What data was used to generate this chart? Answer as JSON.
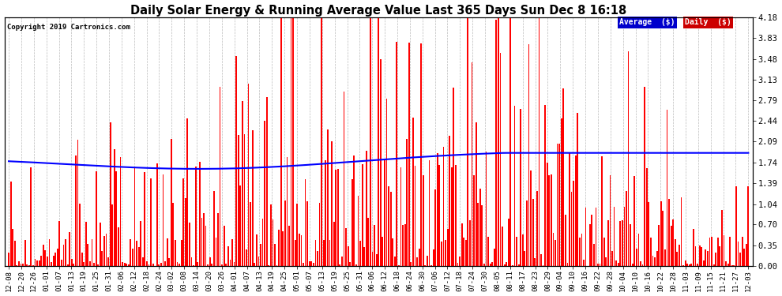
{
  "title": "Daily Solar Energy & Running Average Value Last 365 Days Sun Dec 8 16:18",
  "copyright": "Copyright 2019 Cartronics.com",
  "ylabel_right_ticks": [
    0.0,
    0.35,
    0.7,
    1.04,
    1.39,
    1.74,
    2.09,
    2.44,
    2.79,
    3.13,
    3.48,
    3.83,
    4.18
  ],
  "ylim": [
    0,
    4.18
  ],
  "bar_color": "#ff0000",
  "avg_line_color": "#0000ff",
  "bg_color": "#ffffff",
  "grid_color": "#bbbbbb",
  "title_color": "#000000",
  "legend_avg_bg": "#0000cc",
  "legend_daily_bg": "#cc0000",
  "x_tick_labels": [
    "12-08",
    "12-20",
    "12-26",
    "01-01",
    "01-07",
    "01-13",
    "01-19",
    "01-25",
    "01-31",
    "02-06",
    "02-12",
    "02-18",
    "02-24",
    "03-02",
    "03-08",
    "03-14",
    "03-20",
    "03-26",
    "04-01",
    "04-07",
    "04-13",
    "04-19",
    "04-25",
    "05-01",
    "05-07",
    "05-13",
    "05-19",
    "05-25",
    "05-31",
    "06-06",
    "06-12",
    "06-18",
    "06-24",
    "06-30",
    "07-06",
    "07-12",
    "07-18",
    "07-24",
    "07-30",
    "08-05",
    "08-11",
    "08-17",
    "08-23",
    "08-29",
    "09-04",
    "09-10",
    "09-16",
    "09-22",
    "09-28",
    "10-04",
    "10-10",
    "10-16",
    "10-22",
    "10-28",
    "11-03",
    "11-09",
    "11-15",
    "11-21",
    "11-27",
    "12-03"
  ]
}
